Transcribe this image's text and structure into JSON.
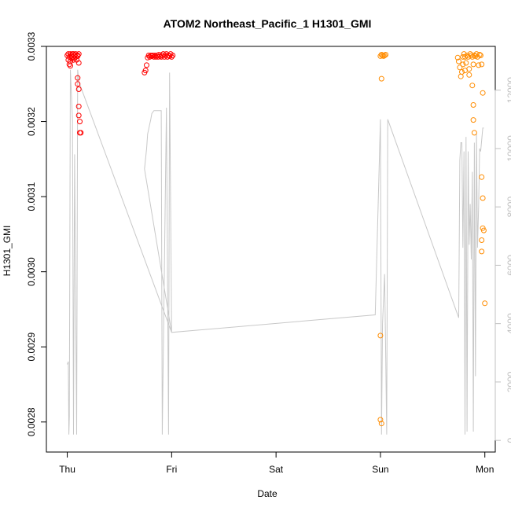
{
  "chart_data": {
    "type": "scatter",
    "title": "ATOM2 Northeast_Pacific_1 H1301_GMI",
    "xlabel": "Date",
    "ylabel": "H1301_GMI",
    "x_ticks": [
      {
        "value": 0,
        "label": "Thu"
      },
      {
        "value": 1,
        "label": "Fri"
      },
      {
        "value": 2,
        "label": "Sat"
      },
      {
        "value": 3,
        "label": "Sun"
      },
      {
        "value": 4,
        "label": "Mon"
      }
    ],
    "xlim": [
      -0.2,
      4.1
    ],
    "ylim": [
      0.00276,
      0.0033
    ],
    "y_ticks": [
      {
        "value": 0.0028,
        "label": "0.0028"
      },
      {
        "value": 0.0029,
        "label": "0.0029"
      },
      {
        "value": 0.003,
        "label": "0.0030"
      },
      {
        "value": 0.0031,
        "label": "0.0031"
      },
      {
        "value": 0.0032,
        "label": "0.0032"
      },
      {
        "value": 0.0033,
        "label": "0.0033"
      }
    ],
    "y2lim": [
      -400,
      13500
    ],
    "y2_ticks": [
      {
        "value": 0,
        "label": "0"
      },
      {
        "value": 2000,
        "label": "2000"
      },
      {
        "value": 4000,
        "label": "4000"
      },
      {
        "value": 6000,
        "label": "6000"
      },
      {
        "value": 8000,
        "label": "8000"
      },
      {
        "value": 10000,
        "label": "10000"
      },
      {
        "value": 12000,
        "label": "12000"
      }
    ],
    "grid": false,
    "colors": {
      "red_points": "#ff0000",
      "orange_points": "#ff8c00",
      "altitude_line": "#c8c8c8",
      "right_axis": "#c0c0c0"
    },
    "series": [
      {
        "color_key": "red_points",
        "points": [
          [
            0.0,
            0.003288
          ],
          [
            0.01,
            0.00329
          ],
          [
            0.01,
            0.003282
          ],
          [
            0.02,
            0.003276
          ],
          [
            0.02,
            0.003286
          ],
          [
            0.03,
            0.00329
          ],
          [
            0.03,
            0.00328
          ],
          [
            0.04,
            0.003288
          ],
          [
            0.04,
            0.003284
          ],
          [
            0.05,
            0.00329
          ],
          [
            0.05,
            0.003286
          ],
          [
            0.06,
            0.003282
          ],
          [
            0.06,
            0.00329
          ],
          [
            0.07,
            0.003288
          ],
          [
            0.07,
            0.003284
          ],
          [
            0.08,
            0.003286
          ],
          [
            0.08,
            0.00329
          ],
          [
            0.09,
            0.003282
          ],
          [
            0.1,
            0.003288
          ],
          [
            0.1,
            0.003287
          ],
          [
            0.11,
            0.00329
          ],
          [
            0.11,
            0.003278
          ],
          [
            0.03,
            0.003274
          ],
          [
            0.1,
            0.003258
          ],
          [
            0.1,
            0.00325
          ],
          [
            0.11,
            0.003243
          ],
          [
            0.11,
            0.00322
          ],
          [
            0.11,
            0.003208
          ],
          [
            0.12,
            0.0032
          ],
          [
            0.12,
            0.003185
          ],
          [
            0.13,
            0.003185
          ]
        ]
      },
      {
        "color_key": "red_points",
        "points": [
          [
            0.74,
            0.003265
          ],
          [
            0.75,
            0.003268
          ],
          [
            0.76,
            0.003275
          ],
          [
            0.77,
            0.003285
          ],
          [
            0.78,
            0.003288
          ],
          [
            0.79,
            0.003286
          ],
          [
            0.8,
            0.003288
          ],
          [
            0.81,
            0.003287
          ],
          [
            0.82,
            0.003288
          ],
          [
            0.83,
            0.003286
          ],
          [
            0.84,
            0.003288
          ],
          [
            0.85,
            0.003286
          ],
          [
            0.86,
            0.003288
          ],
          [
            0.87,
            0.003286
          ],
          [
            0.88,
            0.003289
          ],
          [
            0.89,
            0.003287
          ],
          [
            0.9,
            0.003286
          ],
          [
            0.91,
            0.003288
          ],
          [
            0.92,
            0.00329
          ],
          [
            0.93,
            0.003286
          ],
          [
            0.94,
            0.003288
          ],
          [
            0.95,
            0.00329
          ],
          [
            0.96,
            0.003286
          ],
          [
            0.97,
            0.003288
          ],
          [
            0.98,
            0.003287
          ],
          [
            0.99,
            0.00329
          ],
          [
            1.0,
            0.003286
          ],
          [
            1.01,
            0.003288
          ]
        ]
      },
      {
        "color_key": "orange_points",
        "points": [
          [
            3.0,
            0.003287
          ],
          [
            3.01,
            0.003289
          ],
          [
            3.02,
            0.003288
          ],
          [
            3.03,
            0.003287
          ],
          [
            3.04,
            0.003288
          ],
          [
            3.05,
            0.003289
          ],
          [
            3.01,
            0.003257
          ],
          [
            3.0,
            0.002915
          ],
          [
            3.0,
            0.002803
          ],
          [
            3.01,
            0.002798
          ]
        ]
      },
      {
        "color_key": "orange_points",
        "points": [
          [
            3.74,
            0.003285
          ],
          [
            3.75,
            0.00328
          ],
          [
            3.76,
            0.003272
          ],
          [
            3.77,
            0.00326
          ],
          [
            3.78,
            0.003266
          ],
          [
            3.79,
            0.003286
          ],
          [
            3.8,
            0.00329
          ],
          [
            3.81,
            0.003286
          ],
          [
            3.82,
            0.003278
          ],
          [
            3.83,
            0.003288
          ],
          [
            3.84,
            0.003286
          ],
          [
            3.85,
            0.00327
          ],
          [
            3.86,
            0.00329
          ],
          [
            3.87,
            0.003288
          ],
          [
            3.88,
            0.003286
          ],
          [
            3.89,
            0.003276
          ],
          [
            3.9,
            0.003288
          ],
          [
            3.91,
            0.003287
          ],
          [
            3.92,
            0.00329
          ],
          [
            3.93,
            0.003286
          ],
          [
            3.94,
            0.003275
          ],
          [
            3.95,
            0.003289
          ],
          [
            3.96,
            0.003288
          ],
          [
            3.97,
            0.003276
          ],
          [
            3.79,
            0.003276
          ],
          [
            3.81,
            0.003268
          ],
          [
            3.85,
            0.003262
          ],
          [
            3.88,
            0.003248
          ],
          [
            3.98,
            0.003238
          ],
          [
            3.89,
            0.003222
          ],
          [
            3.89,
            0.003202
          ],
          [
            3.9,
            0.003185
          ],
          [
            3.97,
            0.003126
          ],
          [
            3.98,
            0.003098
          ],
          [
            3.98,
            0.003058
          ],
          [
            3.99,
            0.003055
          ],
          [
            3.97,
            0.003042
          ],
          [
            3.97,
            0.003027
          ],
          [
            4.0,
            0.002958
          ]
        ]
      }
    ],
    "altitude_line": [
      [
        0.0,
        2600
      ],
      [
        0.01,
        2700
      ],
      [
        0.015,
        200
      ],
      [
        0.02,
        800
      ],
      [
        0.03,
        12700
      ],
      [
        0.05,
        11000
      ],
      [
        0.06,
        200
      ],
      [
        0.07,
        9800
      ],
      [
        0.08,
        5000
      ],
      [
        0.09,
        200
      ],
      [
        0.1,
        12700
      ],
      [
        0.11,
        12300
      ],
      [
        0.12,
        12200
      ],
      [
        1.0,
        3700
      ],
      [
        0.74,
        9300
      ],
      [
        0.76,
        10000
      ],
      [
        0.77,
        10500
      ],
      [
        0.8,
        11000
      ],
      [
        0.81,
        11200
      ],
      [
        0.83,
        11300
      ],
      [
        0.85,
        11300
      ],
      [
        0.9,
        11300
      ],
      [
        0.91,
        200
      ],
      [
        0.95,
        11400
      ],
      [
        0.97,
        200
      ],
      [
        0.98,
        12600
      ],
      [
        1.0,
        3700
      ],
      [
        2.95,
        4300
      ],
      [
        3.0,
        11000
      ],
      [
        3.01,
        200
      ],
      [
        3.02,
        4000
      ],
      [
        3.04,
        5700
      ],
      [
        3.05,
        3000
      ],
      [
        3.06,
        200
      ],
      [
        3.07,
        11000
      ],
      [
        3.75,
        4200
      ],
      [
        3.76,
        9600
      ],
      [
        3.77,
        10200
      ],
      [
        3.78,
        10200
      ],
      [
        3.79,
        6600
      ],
      [
        3.8,
        9900
      ],
      [
        3.81,
        200
      ],
      [
        3.82,
        10400
      ],
      [
        3.83,
        300
      ],
      [
        3.84,
        9900
      ],
      [
        3.85,
        6700
      ],
      [
        3.86,
        8100
      ],
      [
        3.87,
        6200
      ],
      [
        3.88,
        9200
      ],
      [
        3.89,
        300
      ],
      [
        3.9,
        10200
      ],
      [
        3.91,
        2200
      ],
      [
        3.92,
        10500
      ],
      [
        3.93,
        6600
      ],
      [
        3.94,
        8000
      ],
      [
        3.95,
        10000
      ],
      [
        3.96,
        9900
      ],
      [
        3.98,
        10700
      ],
      [
        3.99,
        10700
      ]
    ]
  }
}
